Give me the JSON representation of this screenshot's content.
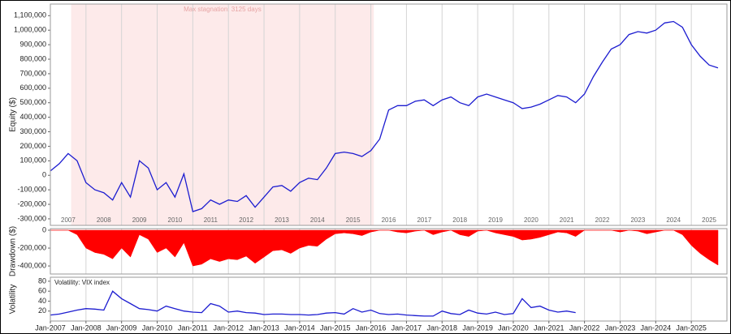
{
  "chart_data": [
    {
      "type": "line",
      "ylabel": "Equity ($)",
      "color": "#1c1cd0",
      "xlim": [
        "2007-01",
        "2026-01"
      ],
      "ylim": [
        -345000,
        1180000
      ],
      "yticks": [
        {
          "value": -300000,
          "label": "-300,000"
        },
        {
          "value": -200000,
          "label": "-200,000"
        },
        {
          "value": -100000,
          "label": "-100,000"
        },
        0,
        {
          "value": 100000,
          "label": "100,000"
        },
        {
          "value": 200000,
          "label": "200,000"
        },
        {
          "value": 300000,
          "label": "300,000"
        },
        {
          "value": 400000,
          "label": "400,000"
        },
        {
          "value": 500000,
          "label": "500,000"
        },
        {
          "value": 600000,
          "label": "600,000"
        },
        {
          "value": 700000,
          "label": "700,000"
        },
        {
          "value": 800000,
          "label": "800,000"
        },
        {
          "value": 900000,
          "label": "900,000"
        },
        {
          "value": 1000000,
          "label": "1,000,000"
        },
        {
          "value": 1100000,
          "label": "1,100,000"
        }
      ],
      "year_labels": [
        {
          "value": "2007-07",
          "label": "2007"
        },
        {
          "value": "2008-07",
          "label": "2008"
        },
        {
          "value": "2009-07",
          "label": "2009"
        },
        {
          "value": "2010-07",
          "label": "2010"
        },
        {
          "value": "2011-07",
          "label": "2011"
        },
        {
          "value": "2012-07",
          "label": "2012"
        },
        {
          "value": "2013-07",
          "label": "2013"
        },
        {
          "value": "2014-07",
          "label": "2014"
        },
        {
          "value": "2015-07",
          "label": "2015"
        },
        {
          "value": "2016-07",
          "label": "2016"
        },
        {
          "value": "2017-07",
          "label": "2017"
        },
        {
          "value": "2018-07",
          "label": "2018"
        },
        {
          "value": "2019-07",
          "label": "2019"
        },
        {
          "value": "2020-07",
          "label": "2020"
        },
        {
          "value": "2021-07",
          "label": "2021"
        },
        {
          "value": "2022-07",
          "label": "2022"
        },
        {
          "value": "2023-07",
          "label": "2023"
        },
        {
          "value": "2024-07",
          "label": "2024"
        },
        {
          "value": "2025-07",
          "label": "2025"
        }
      ],
      "stagnation": {
        "label": "Max stagnation: 3125 days",
        "start": "2007-08",
        "end": "2016-02",
        "color": "#fdeaea"
      },
      "x": [
        "2007-01",
        "2007-04",
        "2007-07",
        "2007-10",
        "2008-01",
        "2008-04",
        "2008-07",
        "2008-10",
        "2009-01",
        "2009-04",
        "2009-07",
        "2009-10",
        "2010-01",
        "2010-04",
        "2010-07",
        "2010-10",
        "2011-01",
        "2011-04",
        "2011-07",
        "2011-10",
        "2012-01",
        "2012-04",
        "2012-07",
        "2012-10",
        "2013-01",
        "2013-04",
        "2013-07",
        "2013-10",
        "2014-01",
        "2014-04",
        "2014-07",
        "2014-10",
        "2015-01",
        "2015-04",
        "2015-07",
        "2015-10",
        "2016-01",
        "2016-04",
        "2016-07",
        "2016-10",
        "2017-01",
        "2017-04",
        "2017-07",
        "2017-10",
        "2018-01",
        "2018-04",
        "2018-07",
        "2018-10",
        "2019-01",
        "2019-04",
        "2019-07",
        "2019-10",
        "2020-01",
        "2020-04",
        "2020-07",
        "2020-10",
        "2021-01",
        "2021-04",
        "2021-07",
        "2021-10",
        "2022-01",
        "2022-04",
        "2022-07",
        "2022-10",
        "2023-01",
        "2023-04",
        "2023-07",
        "2023-10",
        "2024-01",
        "2024-04",
        "2024-07",
        "2024-10",
        "2025-01",
        "2025-04",
        "2025-07",
        "2025-10"
      ],
      "values": [
        30000,
        80000,
        150000,
        100000,
        -50000,
        -100000,
        -120000,
        -170000,
        -50000,
        -150000,
        100000,
        50000,
        -100000,
        -50000,
        -150000,
        10000,
        -250000,
        -230000,
        -170000,
        -200000,
        -170000,
        -180000,
        -140000,
        -220000,
        -150000,
        -80000,
        -70000,
        -110000,
        -50000,
        -20000,
        -30000,
        50000,
        150000,
        160000,
        150000,
        130000,
        170000,
        250000,
        450000,
        480000,
        480000,
        510000,
        520000,
        480000,
        520000,
        540000,
        500000,
        480000,
        540000,
        560000,
        540000,
        520000,
        500000,
        460000,
        470000,
        490000,
        520000,
        550000,
        540000,
        500000,
        560000,
        680000,
        780000,
        870000,
        900000,
        970000,
        990000,
        980000,
        1000000,
        1050000,
        1060000,
        1020000,
        900000,
        820000,
        760000,
        740000
      ]
    },
    {
      "type": "area",
      "ylabel": "Drawdown ($)",
      "color": "#ff0000",
      "xlim": [
        "2007-01",
        "2026-01"
      ],
      "ylim": [
        -490000,
        18000
      ],
      "yticks": [
        {
          "value": -400000,
          "label": "-400,000"
        },
        {
          "value": -200000,
          "label": "-200,000"
        },
        0
      ],
      "x": [
        "2007-01",
        "2007-04",
        "2007-07",
        "2007-10",
        "2008-01",
        "2008-04",
        "2008-07",
        "2008-10",
        "2009-01",
        "2009-04",
        "2009-07",
        "2009-10",
        "2010-01",
        "2010-04",
        "2010-07",
        "2010-10",
        "2011-01",
        "2011-04",
        "2011-07",
        "2011-10",
        "2012-01",
        "2012-04",
        "2012-07",
        "2012-10",
        "2013-01",
        "2013-04",
        "2013-07",
        "2013-10",
        "2014-01",
        "2014-04",
        "2014-07",
        "2014-10",
        "2015-01",
        "2015-04",
        "2015-07",
        "2015-10",
        "2016-01",
        "2016-04",
        "2016-07",
        "2016-10",
        "2017-01",
        "2017-04",
        "2017-07",
        "2017-10",
        "2018-01",
        "2018-04",
        "2018-07",
        "2018-10",
        "2019-01",
        "2019-04",
        "2019-07",
        "2019-10",
        "2020-01",
        "2020-04",
        "2020-07",
        "2020-10",
        "2021-01",
        "2021-04",
        "2021-07",
        "2021-10",
        "2022-01",
        "2022-04",
        "2022-07",
        "2022-10",
        "2023-01",
        "2023-04",
        "2023-07",
        "2023-10",
        "2024-01",
        "2024-04",
        "2024-07",
        "2024-10",
        "2025-01",
        "2025-04",
        "2025-07",
        "2025-10"
      ],
      "values": [
        0,
        0,
        0,
        -50000,
        -200000,
        -250000,
        -270000,
        -320000,
        -200000,
        -300000,
        -50000,
        -100000,
        -250000,
        -200000,
        -300000,
        -140000,
        -400000,
        -380000,
        -320000,
        -350000,
        -320000,
        -330000,
        -290000,
        -370000,
        -300000,
        -230000,
        -220000,
        -260000,
        -200000,
        -170000,
        -180000,
        -100000,
        -40000,
        -30000,
        -40000,
        -60000,
        -20000,
        0,
        0,
        -20000,
        -30000,
        -10000,
        0,
        -50000,
        -20000,
        0,
        -50000,
        -70000,
        -10000,
        0,
        -30000,
        -50000,
        -70000,
        -110000,
        -100000,
        -80000,
        -50000,
        -20000,
        -30000,
        -70000,
        0,
        0,
        0,
        0,
        -20000,
        0,
        -10000,
        -40000,
        -20000,
        0,
        0,
        -50000,
        -170000,
        -260000,
        -330000,
        -390000
      ]
    },
    {
      "type": "line",
      "ylabel": "Volatility",
      "panel_label": "Volatility: VIX index",
      "color": "#1c1cd0",
      "xlim": [
        "2007-01",
        "2026-01"
      ],
      "ylim": [
        0,
        88
      ],
      "yticks": [
        20,
        40,
        60,
        80
      ],
      "xticks": [
        {
          "value": "2007-01",
          "label": "Jan-2007"
        },
        {
          "value": "2008-01",
          "label": "Jan-2008"
        },
        {
          "value": "2009-01",
          "label": "Jan-2009"
        },
        {
          "value": "2010-01",
          "label": "Jan-2010"
        },
        {
          "value": "2011-01",
          "label": "Jan-2011"
        },
        {
          "value": "2012-01",
          "label": "Jan-2012"
        },
        {
          "value": "2013-01",
          "label": "Jan-2013"
        },
        {
          "value": "2014-01",
          "label": "Jan-2014"
        },
        {
          "value": "2015-01",
          "label": "Jan-2015"
        },
        {
          "value": "2016-01",
          "label": "Jan-2016"
        },
        {
          "value": "2017-01",
          "label": "Jan-2017"
        },
        {
          "value": "2018-01",
          "label": "Jan-2018"
        },
        {
          "value": "2019-01",
          "label": "Jan-2019"
        },
        {
          "value": "2020-01",
          "label": "Jan-2020"
        },
        {
          "value": "2021-01",
          "label": "Jan-2021"
        },
        {
          "value": "2022-01",
          "label": "Jan-2022"
        },
        {
          "value": "2023-01",
          "label": "Jan-2023"
        },
        {
          "value": "2024-01",
          "label": "Jan-2024"
        },
        {
          "value": "2025-01",
          "label": "Jan-2025"
        }
      ],
      "x": [
        "2007-01",
        "2007-04",
        "2007-07",
        "2007-10",
        "2008-01",
        "2008-04",
        "2008-07",
        "2008-10",
        "2009-01",
        "2009-04",
        "2009-07",
        "2009-10",
        "2010-01",
        "2010-04",
        "2010-07",
        "2010-10",
        "2011-01",
        "2011-04",
        "2011-07",
        "2011-10",
        "2012-01",
        "2012-04",
        "2012-07",
        "2012-10",
        "2013-01",
        "2013-04",
        "2013-07",
        "2013-10",
        "2014-01",
        "2014-04",
        "2014-07",
        "2014-10",
        "2015-01",
        "2015-04",
        "2015-07",
        "2015-10",
        "2016-01",
        "2016-04",
        "2016-07",
        "2016-10",
        "2017-01",
        "2017-04",
        "2017-07",
        "2017-10",
        "2018-01",
        "2018-04",
        "2018-07",
        "2018-10",
        "2019-01",
        "2019-04",
        "2019-07",
        "2019-10",
        "2020-01",
        "2020-04",
        "2020-07",
        "2020-10",
        "2021-01",
        "2021-04",
        "2021-07",
        "2021-10",
        "2022-01",
        "2022-04",
        "2022-07",
        "2022-10",
        "2023-01",
        "2023-04",
        "2023-07",
        "2023-10",
        "2024-01",
        "2024-04",
        "2024-07",
        "2024-10",
        "2025-01",
        "2025-04",
        "2025-07",
        "2025-10"
      ],
      "values": [
        12,
        14,
        18,
        22,
        25,
        24,
        22,
        60,
        45,
        35,
        25,
        23,
        20,
        30,
        25,
        20,
        18,
        17,
        35,
        30,
        18,
        20,
        17,
        16,
        13,
        14,
        14,
        13,
        13,
        12,
        13,
        16,
        17,
        14,
        25,
        18,
        22,
        15,
        13,
        14,
        12,
        11,
        10,
        10,
        20,
        15,
        13,
        22,
        16,
        14,
        18,
        13,
        15,
        45,
        27,
        30,
        22,
        18,
        20,
        17,
        null,
        null,
        null,
        null,
        null,
        null,
        null,
        null,
        null,
        null,
        null,
        null,
        null,
        null,
        null,
        null
      ]
    }
  ]
}
